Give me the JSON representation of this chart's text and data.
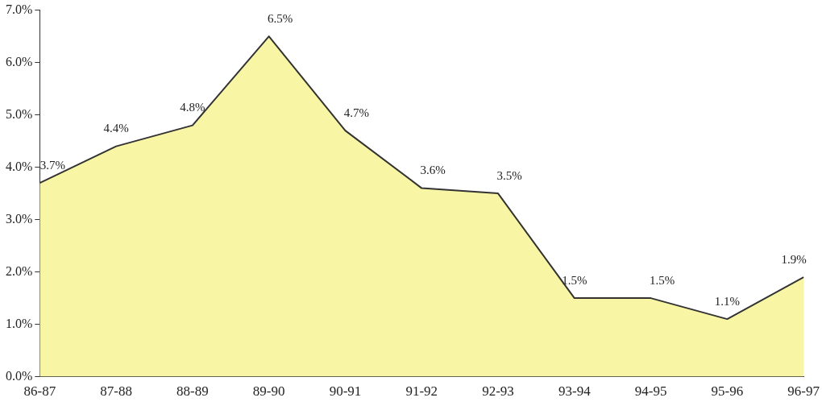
{
  "chart_data": {
    "type": "area",
    "categories": [
      "86-87",
      "87-88",
      "88-89",
      "89-90",
      "90-91",
      "91-92",
      "92-93",
      "93-94",
      "94-95",
      "95-96",
      "96-97"
    ],
    "series": [
      {
        "color": "#f8f6a4",
        "values": [
          3.7,
          4.4,
          4.8,
          6.5,
          4.7,
          3.6,
          3.5,
          1.5,
          1.5,
          1.1,
          1.9
        ],
        "value_labels": [
          "3.7%",
          "4.4%",
          "4.8%",
          "6.5%",
          "4.7%",
          "3.6%",
          "3.5%",
          "1.5%",
          "1.5%",
          "1.1%",
          "1.9%"
        ]
      }
    ],
    "ylim": [
      0,
      7
    ],
    "yticks": [
      {
        "value": 0,
        "label": "0.0%"
      },
      {
        "value": 1,
        "label": "1.0%"
      },
      {
        "value": 2,
        "label": "2.0%"
      },
      {
        "value": 3,
        "label": "3.0%"
      },
      {
        "value": 4,
        "label": "4.0%"
      },
      {
        "value": 5,
        "label": "5.0%"
      },
      {
        "value": 6,
        "label": "6.0%"
      },
      {
        "value": 7,
        "label": "7.0%"
      }
    ],
    "grid": false,
    "legend": false
  }
}
